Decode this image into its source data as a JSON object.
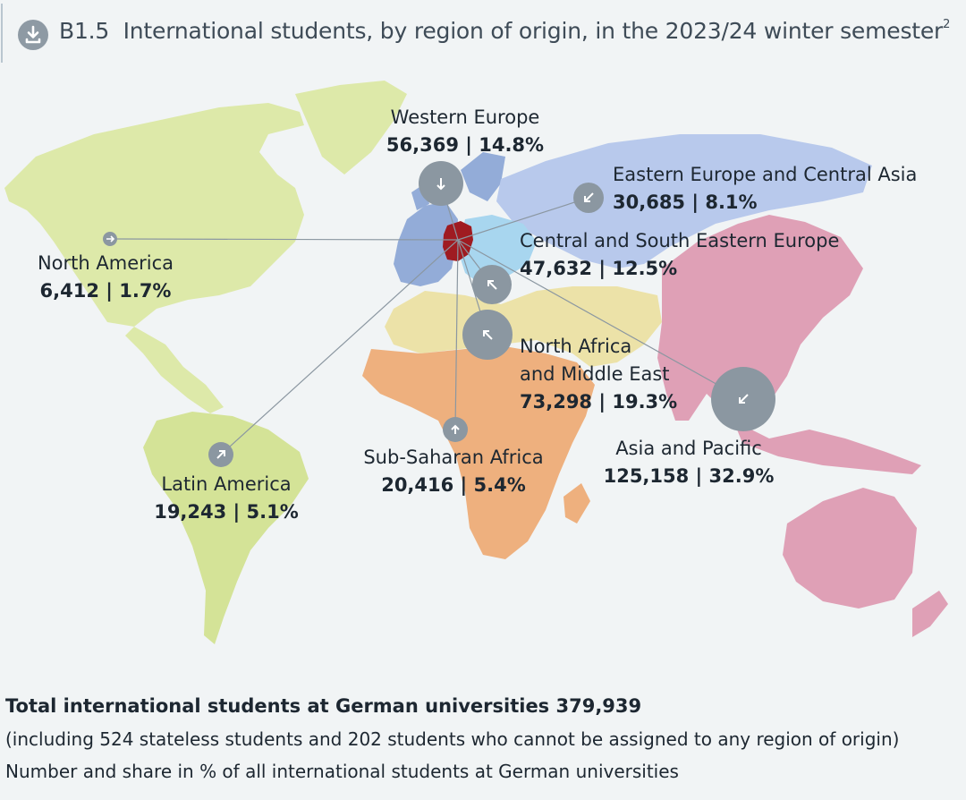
{
  "header": {
    "figure_id": "B1.5",
    "title": "International students, by region of origin, in the 2023/24 winter semester",
    "footnote_marker": "2",
    "download_icon": "download-icon"
  },
  "colors": {
    "background": "#f1f4f5",
    "north_america_latin_america": "#dde9a9",
    "latin_america": "#d4e397",
    "western_europe": "#93acd8",
    "eastern_europe_central_asia": "#b8c9ec",
    "central_south_eastern_europe": "#a8d6ef",
    "north_africa_middle_east": "#ece2a8",
    "sub_saharan_africa": "#eeb07e",
    "asia_pacific": "#dfa0b6",
    "germany": "#9f1b21",
    "bubble": "#8b97a1",
    "connector": "#8b97a1"
  },
  "chart_data": {
    "type": "bubble-map",
    "center": "Germany",
    "regions": [
      {
        "name": "Western Europe",
        "value": "56,369",
        "share": "14.8%",
        "students": 56369,
        "percent": 14.8
      },
      {
        "name": "Eastern Europe and Central Asia",
        "value": "30,685",
        "share": "8.1%",
        "students": 30685,
        "percent": 8.1
      },
      {
        "name": "Central and South Eastern Europe",
        "value": "47,632",
        "share": "12.5%",
        "students": 47632,
        "percent": 12.5
      },
      {
        "name": "North America",
        "value": "6,412",
        "share": "1.7%",
        "students": 6412,
        "percent": 1.7
      },
      {
        "name_line1": "North Africa",
        "name_line2": "and Middle East",
        "value": "73,298",
        "share": "19.3%",
        "students": 73298,
        "percent": 19.3
      },
      {
        "name": "Asia and Pacific",
        "value": "125,158",
        "share": "32.9%",
        "students": 125158,
        "percent": 32.9
      },
      {
        "name": "Sub-Saharan Africa",
        "value": "20,416",
        "share": "5.4%",
        "students": 20416,
        "percent": 5.4
      },
      {
        "name": "Latin America",
        "value": "19,243",
        "share": "5.1%",
        "students": 19243,
        "percent": 5.1
      }
    ]
  },
  "footer": {
    "total": "Total international students at German universities 379,939",
    "note": "(including 524 stateless students and 202 students who cannot be assigned to any region of origin)",
    "caption": "Number and share in % of all international students at German universities"
  }
}
